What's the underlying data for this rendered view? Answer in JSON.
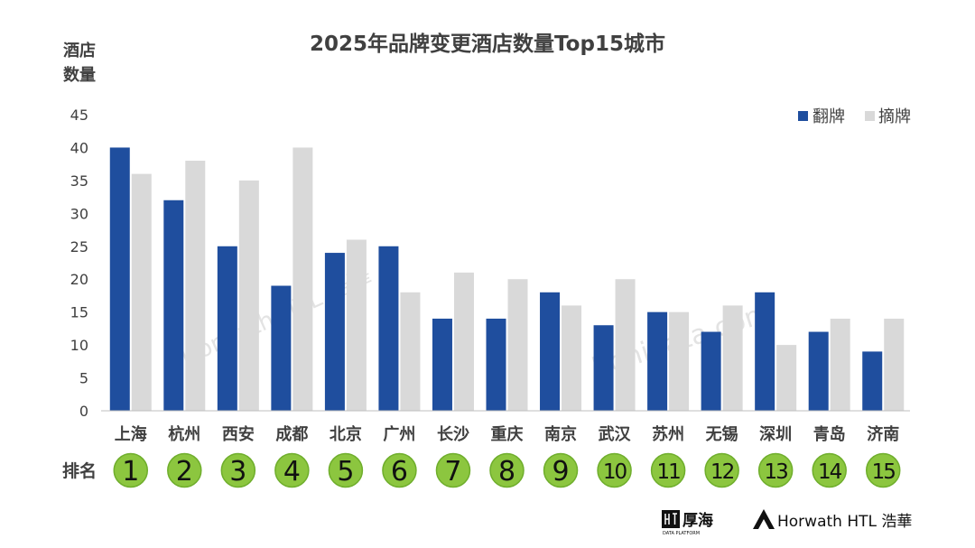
{
  "chart_data": {
    "type": "bar",
    "title": "2025年品牌变更酒店数量Top15城市",
    "ylabel": [
      "酒店",
      "数量"
    ],
    "ylim": [
      0,
      45
    ],
    "yticks": [
      0,
      5,
      10,
      15,
      20,
      25,
      30,
      35,
      40,
      45
    ],
    "grid": false,
    "legend_position": "top-right",
    "categories": [
      "上海",
      "杭州",
      "西安",
      "成都",
      "北京",
      "广州",
      "长沙",
      "重庆",
      "南京",
      "武汉",
      "苏州",
      "无锡",
      "深圳",
      "青岛",
      "济南"
    ],
    "series": [
      {
        "name": "翻牌",
        "color": "#1f4e9e",
        "values": [
          40,
          32,
          25,
          19,
          24,
          25,
          14,
          14,
          18,
          13,
          15,
          12,
          18,
          12,
          9
        ]
      },
      {
        "name": "摘牌",
        "color": "#d9d9d9",
        "values": [
          36,
          38,
          35,
          40,
          26,
          18,
          21,
          20,
          16,
          20,
          15,
          16,
          10,
          14,
          14
        ]
      }
    ],
    "rank_label": "排名",
    "ranks": [
      "1",
      "2",
      "3",
      "4",
      "5",
      "6",
      "7",
      "8",
      "9",
      "10",
      "11",
      "12",
      "13",
      "14",
      "15"
    ],
    "rank_color": "#8cc63f",
    "watermarks": [
      "Horwath HTL 浩華",
      "hohidata.com"
    ],
    "footer_logos": [
      {
        "name": "厚海",
        "sub": "DATA PLATFORM"
      },
      {
        "name": "Horwath HTL 浩華"
      }
    ]
  }
}
